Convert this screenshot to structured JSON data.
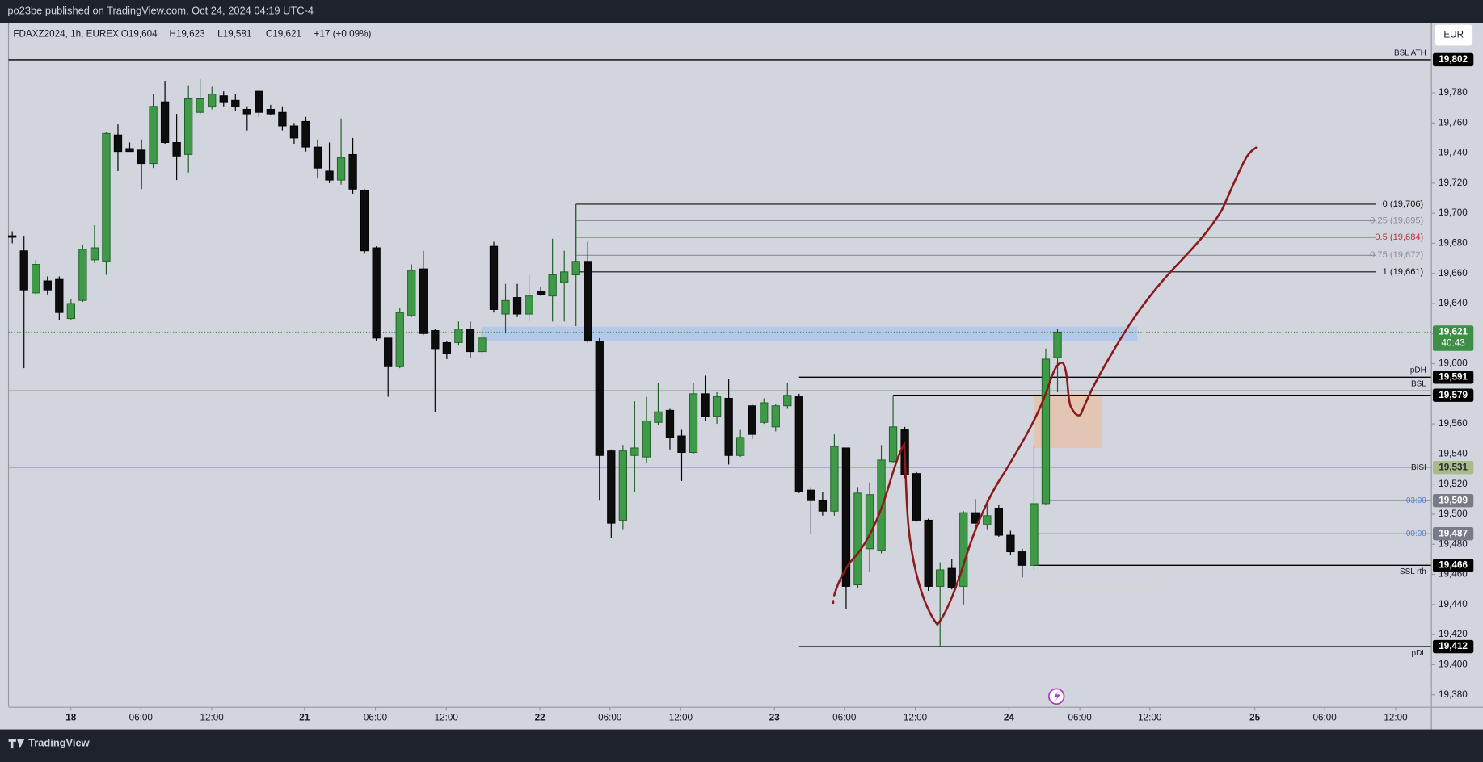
{
  "header": {
    "publisher": "po23be published on TradingView.com, Oct 24, 2024 04:19 UTC-4",
    "symbol": "FDAXZ2024, 1h, EUREX",
    "ohlc": [
      "O19,604",
      "H19,623",
      "L19,581",
      "C19,621",
      "+17 (+0.09%)"
    ],
    "currency": "EUR"
  },
  "footer": {
    "brand": "TradingView"
  },
  "chart_data": {
    "type": "candlestick",
    "x": [
      0,
      1,
      2,
      3,
      4,
      5,
      6,
      7,
      8,
      9,
      10,
      11,
      12,
      13,
      14,
      15,
      16,
      17,
      18,
      19,
      20,
      21,
      22,
      23,
      24,
      25,
      26,
      27,
      28,
      29,
      30,
      31,
      32,
      33,
      34,
      35,
      36,
      37,
      38,
      39,
      40,
      41,
      42,
      43,
      44,
      45,
      46,
      47,
      48,
      49,
      50,
      51,
      52,
      53,
      54,
      55,
      56,
      57,
      58,
      59,
      60,
      61,
      62,
      63,
      64,
      65,
      66,
      67,
      68,
      69,
      70,
      71,
      72,
      73,
      74,
      75,
      76,
      77,
      78,
      79,
      80,
      81,
      82,
      83,
      84,
      85,
      86,
      87,
      88,
      89
    ],
    "open": [
      19685,
      19675,
      19647,
      19655,
      19656,
      19630,
      19642,
      19669,
      19668,
      19752,
      19743,
      19742,
      19733,
      19774,
      19747,
      19739,
      19767,
      19771,
      19778,
      19775,
      19769,
      19781,
      19769,
      19767,
      19758,
      19761,
      19744,
      19728,
      19722,
      19739,
      19715,
      19677,
      19617,
      19598,
      19632,
      19663,
      19622,
      19614,
      19614,
      19623,
      19608,
      19678,
      19633,
      19644,
      19633,
      19648,
      19645,
      19654,
      19659,
      19668,
      19615,
      19542,
      19496,
      19539,
      19538,
      19561,
      19569,
      19552,
      19541,
      19580,
      19565,
      19577,
      19539,
      19572,
      19561,
      19558,
      19572,
      19578,
      19516,
      19509,
      19502,
      19544,
      19453,
      19477,
      19476,
      19535,
      19556,
      19527,
      19496,
      19452,
      19464,
      19452,
      19501,
      19493,
      19504,
      19486,
      19475,
      19466,
      19507,
      19604
    ],
    "high": [
      19688,
      19685,
      19669,
      19658,
      19658,
      19643,
      19679,
      19692,
      19754,
      19759,
      19747,
      19749,
      19779,
      19788,
      19766,
      19785,
      19789,
      19784,
      19781,
      19779,
      19771,
      19782,
      19772,
      19771,
      19760,
      19764,
      19749,
      19747,
      19763,
      19750,
      19716,
      19678,
      19617,
      19637,
      19666,
      19675,
      19623,
      19615,
      19628,
      19628,
      19623,
      19681,
      19653,
      19653,
      19659,
      19651,
      19683,
      19675,
      19706,
      19681,
      19617,
      19543,
      19546,
      19575,
      19578,
      19587,
      19570,
      19556,
      19587,
      19592,
      19581,
      19590,
      19556,
      19573,
      19577,
      19573,
      19587,
      19580,
      19518,
      19515,
      19553,
      19544,
      19518,
      19521,
      19546,
      19579,
      19558,
      19528,
      19497,
      19468,
      19470,
      19502,
      19510,
      19509,
      19506,
      19489,
      19477,
      19546,
      19610,
      19623
    ],
    "low": [
      19680,
      19597,
      19646,
      19646,
      19629,
      19629,
      19641,
      19667,
      19659,
      19728,
      19741,
      19716,
      19730,
      19746,
      19722,
      19727,
      19766,
      19769,
      19771,
      19768,
      19755,
      19764,
      19765,
      19755,
      19746,
      19741,
      19723,
      19720,
      19719,
      19713,
      19673,
      19615,
      19578,
      19597,
      19631,
      19619,
      19568,
      19603,
      19612,
      19604,
      19606,
      19634,
      19620,
      19631,
      19628,
      19645,
      19628,
      19628,
      19625,
      19614,
      19509,
      19484,
      19490,
      19515,
      19534,
      19559,
      19543,
      19522,
      19540,
      19562,
      19560,
      19533,
      19538,
      19550,
      19560,
      19555,
      19570,
      19514,
      19487,
      19499,
      19499,
      19437,
      19451,
      19462,
      19474,
      19534,
      19524,
      19495,
      19449,
      19412,
      19450,
      19440,
      19490,
      19490,
      19485,
      19473,
      19458,
      19463,
      19506,
      19581
    ],
    "close": [
      19684,
      19649,
      19666,
      19649,
      19634,
      19640,
      19676,
      19677,
      19753,
      19741,
      19741,
      19733,
      19771,
      19747,
      19738,
      19776,
      19776,
      19779,
      19774,
      19771,
      19766,
      19767,
      19766,
      19758,
      19750,
      19744,
      19730,
      19722,
      19737,
      19716,
      19675,
      19617,
      19598,
      19634,
      19662,
      19620,
      19610,
      19607,
      19623,
      19608,
      19617,
      19636,
      19642,
      19633,
      19645,
      19646,
      19659,
      19661,
      19668,
      19615,
      19539,
      19494,
      19542,
      19544,
      19562,
      19568,
      19551,
      19541,
      19580,
      19565,
      19578,
      19539,
      19551,
      19553,
      19574,
      19572,
      19579,
      19515,
      19509,
      19502,
      19545,
      19452,
      19514,
      19513,
      19536,
      19558,
      19526,
      19496,
      19452,
      19463,
      19451,
      19501,
      19494,
      19499,
      19486,
      19475,
      19466,
      19507,
      19603,
      19621
    ],
    "up_color": "#3f9a47",
    "down_color": "#0d0d0d",
    "xlim": [
      -0.32,
      120.8
    ],
    "xticks": [
      {
        "value": 4.99,
        "label": "18"
      },
      {
        "value": 10.95,
        "label": "06:00"
      },
      {
        "value": 16.99,
        "label": "12:00"
      },
      {
        "value": 24.88,
        "label": "21"
      },
      {
        "value": 30.92,
        "label": "06:00"
      },
      {
        "value": 36.96,
        "label": "12:00"
      },
      {
        "value": 44.93,
        "label": "22"
      },
      {
        "value": 50.89,
        "label": "06:00"
      },
      {
        "value": 56.92,
        "label": "12:00"
      },
      {
        "value": 64.9,
        "label": "23"
      },
      {
        "value": 70.85,
        "label": "06:00"
      },
      {
        "value": 76.89,
        "label": "12:00"
      },
      {
        "value": 84.86,
        "label": "24"
      },
      {
        "value": 90.9,
        "label": "06:00"
      },
      {
        "value": 96.86,
        "label": "12:00"
      },
      {
        "value": 105.8,
        "label": "25"
      },
      {
        "value": 111.75,
        "label": "06:00"
      },
      {
        "value": 117.8,
        "label": "12:00"
      }
    ],
    "ylim": [
      19372,
      19826.5
    ],
    "yticks": [
      {
        "value": 19380,
        "label": "19,380"
      },
      {
        "value": 19400,
        "label": "19,400"
      },
      {
        "value": 19420,
        "label": "19,420"
      },
      {
        "value": 19440,
        "label": "19,440"
      },
      {
        "value": 19460,
        "label": "19,460"
      },
      {
        "value": 19480,
        "label": "19,480"
      },
      {
        "value": 19500,
        "label": "19,500"
      },
      {
        "value": 19520,
        "label": "19,520"
      },
      {
        "value": 19540,
        "label": "19,540"
      },
      {
        "value": 19560,
        "label": "19,560"
      },
      {
        "value": 19580,
        "label": "19,580"
      },
      {
        "value": 19600,
        "label": "19,600"
      },
      {
        "value": 19620,
        "label": "19,620"
      },
      {
        "value": 19640,
        "label": "19,640"
      },
      {
        "value": 19660,
        "label": "19,660"
      },
      {
        "value": 19680,
        "label": "19,680"
      },
      {
        "value": 19700,
        "label": "19,700"
      },
      {
        "value": 19720,
        "label": "19,720"
      },
      {
        "value": 19740,
        "label": "19,740"
      },
      {
        "value": 19760,
        "label": "19,760"
      },
      {
        "value": 19780,
        "label": "19,780"
      }
    ],
    "levels": [
      {
        "name": "BSL ATH",
        "value": 19802,
        "value_label": "19,802",
        "x_start": -0.32,
        "color": "#000000",
        "tag_color": "#000000",
        "label_side": "above"
      },
      {
        "name": "pDH",
        "value": 19591,
        "value_label": "19,591",
        "x_start": 67,
        "color": "#000000",
        "tag_color": "#000000",
        "label_side": "above"
      },
      {
        "name": "BSL",
        "value": 19582,
        "x_start": -0.32,
        "color": "#8e9c70",
        "label_side": "above"
      },
      {
        "value": 19579,
        "value_label": "19,579",
        "x_start": 75,
        "color": "#000000",
        "tag_color": "#000000"
      },
      {
        "name": "BISI",
        "value": 19531,
        "value_label": "19,531",
        "x_start": -0.32,
        "color": "#9aab7a",
        "tag_color": "#a9bc86",
        "label_side": "on"
      },
      {
        "name": "03:00",
        "value": 19509,
        "value_label": "19,509",
        "x_start": 88,
        "color": "#8a8d96",
        "tag_color": "#787b86",
        "name_color": "#4a7fe0",
        "label_side": "on"
      },
      {
        "name": "00:00",
        "value": 19487,
        "value_label": "19,487",
        "x_start": 87,
        "color": "#8a8d96",
        "tag_color": "#787b86",
        "name_color": "#4a7fe0",
        "label_side": "on"
      },
      {
        "name": "SSL rth",
        "value": 19466,
        "value_label": "19,466",
        "x_start": 87,
        "color": "#000000",
        "tag_color": "#000000",
        "label_side": "below"
      },
      {
        "name": "pDL",
        "value": 19412,
        "value_label": "19,412",
        "x_start": 67,
        "color": "#000000",
        "tag_color": "#000000",
        "label_side": "below"
      },
      {
        "value": 19451,
        "x_start": 80,
        "x_end": 97.8,
        "color": "#e6cf3a",
        "dashed": true
      }
    ],
    "fib": {
      "x_start": 48,
      "x_end": 116.1,
      "levels": [
        {
          "label": "0 (19,706)",
          "value": 19706,
          "color": "#111111"
        },
        {
          "label": "0.25 (19,695)",
          "value": 19695,
          "color": "#8a8d96"
        },
        {
          "label": "0.5 (19,684)",
          "value": 19684,
          "color": "#c0303a"
        },
        {
          "label": "0.75 (19,672)",
          "value": 19672,
          "color": "#8a8d96"
        },
        {
          "label": "1 (19,661)",
          "value": 19661,
          "color": "#111111"
        }
      ]
    },
    "zones": [
      {
        "top": 19624.6,
        "bottom": 19615,
        "x_start": 40,
        "x_end": 95.8,
        "color": "#a9c4ec"
      },
      {
        "top": 19580,
        "bottom": 19544,
        "x_start": 87,
        "x_end": 92.8,
        "color": "#e8bfa6"
      }
    ],
    "current": {
      "value": 19621,
      "value_label": "19,621",
      "countdown": "40:43",
      "color": "#3d8f47"
    }
  }
}
